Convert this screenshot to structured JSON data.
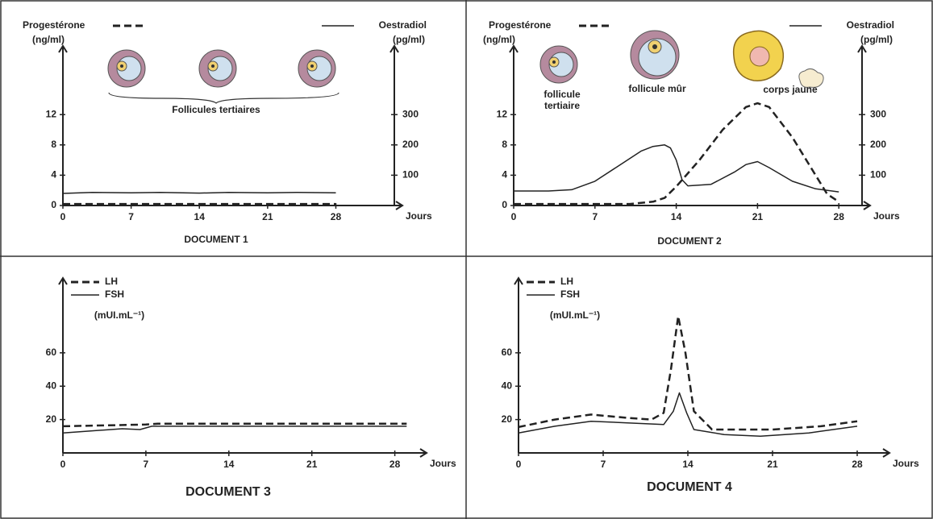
{
  "chart_data": [
    {
      "type": "line",
      "title": "DOCUMENT 1",
      "xlabel": "Jours",
      "xlim": [
        0,
        34
      ],
      "xticks": [
        0,
        7,
        14,
        21,
        28
      ],
      "ylim": [
        0,
        20
      ],
      "yticks": [
        0,
        4,
        8,
        12
      ],
      "ylabel": "(ng/ml)",
      "y2lim": [
        0,
        500
      ],
      "y2ticks": [
        100,
        200,
        300
      ],
      "y2label": "(pg/ml)",
      "annotations": [
        "Follicules tertiaires"
      ],
      "series": [
        {
          "name": "Progestérone",
          "color": "#222",
          "style": "dashed",
          "x": [
            0,
            28
          ],
          "values": [
            0.2,
            0.2
          ]
        },
        {
          "name": "Oestradiol",
          "color": "#222",
          "style": "solid",
          "axis": "y2",
          "x": [
            0,
            3,
            7,
            10,
            14,
            17,
            21,
            24,
            28
          ],
          "values": [
            40,
            43,
            42,
            43,
            41,
            43,
            42,
            43,
            42
          ]
        }
      ]
    },
    {
      "type": "line",
      "title": "DOCUMENT 2",
      "xlabel": "Jours",
      "xlim": [
        0,
        30
      ],
      "xticks": [
        0,
        7,
        14,
        21,
        28
      ],
      "ylim": [
        0,
        20
      ],
      "yticks": [
        0,
        4,
        8,
        12
      ],
      "ylabel": "(ng/ml)",
      "y2lim": [
        0,
        500
      ],
      "y2ticks": [
        100,
        200,
        300
      ],
      "y2label": "(pg/ml)",
      "annotations": [
        "follicule tertiaire",
        "follicule mûr",
        "corps jaune"
      ],
      "series": [
        {
          "name": "Progestérone",
          "color": "#222",
          "style": "dashed",
          "x": [
            0,
            10,
            12,
            13,
            14,
            16,
            18,
            20,
            21,
            22,
            24,
            26,
            27,
            28
          ],
          "values": [
            0.2,
            0.2,
            0.5,
            1,
            2.5,
            6,
            10,
            13,
            13.5,
            13,
            9,
            4,
            1.5,
            0.5
          ]
        },
        {
          "name": "Oestradiol",
          "color": "#222",
          "style": "solid",
          "axis": "y2",
          "x": [
            0,
            3,
            5,
            7,
            9,
            11,
            12,
            13,
            13.5,
            14,
            14.5,
            15,
            17,
            19,
            20,
            21,
            22,
            24,
            26,
            28
          ],
          "values": [
            48,
            48,
            52,
            80,
            130,
            180,
            195,
            200,
            190,
            150,
            85,
            65,
            70,
            110,
            135,
            145,
            125,
            80,
            55,
            45
          ]
        }
      ]
    },
    {
      "type": "line",
      "title": "DOCUMENT 3",
      "xlabel": "Jours",
      "xlim": [
        0,
        30
      ],
      "xticks": [
        0,
        7,
        14,
        21,
        28
      ],
      "ylim": [
        0,
        100
      ],
      "yticks": [
        20,
        40,
        60
      ],
      "ylabel": "(mUI.mL⁻¹)",
      "series": [
        {
          "name": "LH",
          "color": "#222",
          "style": "dashed",
          "x": [
            0,
            7,
            8,
            29
          ],
          "values": [
            16,
            17,
            17.5,
            17.5
          ]
        },
        {
          "name": "FSH",
          "color": "#222",
          "style": "solid",
          "x": [
            0,
            5,
            6.5,
            7.5,
            29
          ],
          "values": [
            12,
            14.5,
            14,
            16,
            16
          ]
        }
      ]
    },
    {
      "type": "line",
      "title": "DOCUMENT 4",
      "xlabel": "Jours",
      "xlim": [
        0,
        30
      ],
      "xticks": [
        0,
        7,
        14,
        21,
        28
      ],
      "ylim": [
        0,
        100
      ],
      "yticks": [
        20,
        40,
        60
      ],
      "ylabel": "(mUI.mL⁻¹)",
      "series": [
        {
          "name": "LH",
          "color": "#222",
          "style": "dashed",
          "x": [
            0,
            3,
            6,
            9,
            11,
            12,
            12.6,
            13.2,
            13.8,
            14.5,
            16,
            21,
            25,
            28
          ],
          "values": [
            15.5,
            20,
            23,
            21,
            20,
            24,
            50,
            82,
            60,
            25,
            14,
            14,
            16,
            19
          ]
        },
        {
          "name": "FSH",
          "color": "#222",
          "style": "solid",
          "x": [
            0,
            3,
            6,
            9,
            12,
            12.8,
            13.3,
            13.9,
            14.5,
            17,
            20,
            24,
            28
          ],
          "values": [
            12,
            16,
            19,
            18,
            17,
            25,
            36,
            24,
            14,
            11,
            10,
            12,
            16
          ]
        }
      ]
    }
  ]
}
